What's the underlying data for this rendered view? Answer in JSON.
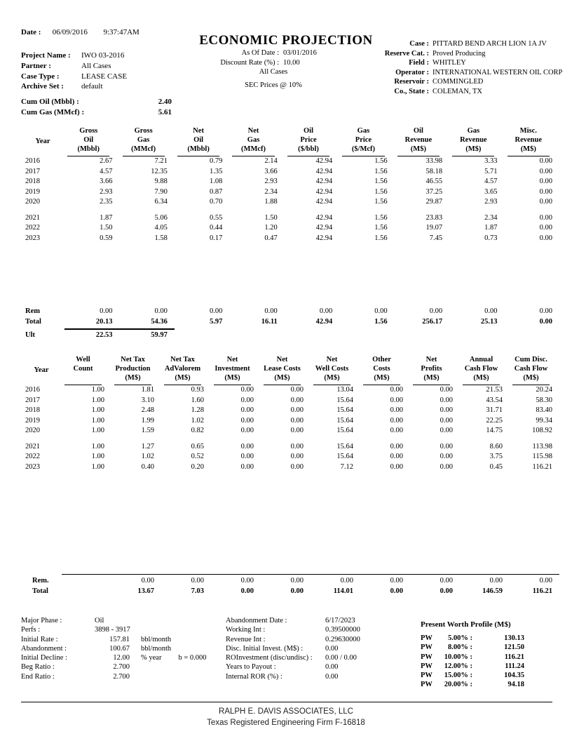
{
  "meta": {
    "date_label": "Date :",
    "date": "06/09/2016",
    "time": "9:37:47AM"
  },
  "title": "ECONOMIC PROJECTION",
  "subtitle": {
    "as_of_label": "As Of Date :",
    "as_of": "03/01/2016",
    "discount_label": "Discount Rate (%) :",
    "discount": "10.00",
    "all_cases": "All Cases",
    "sec_prices": "SEC Prices @ 10%"
  },
  "project": [
    {
      "label": "Project Name :",
      "value": "IWO 03-2016"
    },
    {
      "label": "Partner :",
      "value": "All Cases"
    },
    {
      "label": "Case Type :",
      "value": "LEASE CASE"
    },
    {
      "label": "Archive Set :",
      "value": "default"
    }
  ],
  "cums": [
    {
      "label": "Cum Oil (Mbbl) :",
      "value": "2.40"
    },
    {
      "label": "Cum Gas (MMcf) :",
      "value": "5.61"
    }
  ],
  "case_info": [
    {
      "label": "Case :",
      "value": "PITTARD BEND ARCH LION 1A JV"
    },
    {
      "label": "Reserve Cat. :",
      "value": "Proved Producing"
    },
    {
      "label": "Field :",
      "value": "WHITLEY"
    },
    {
      "label": "Operator :",
      "value": "INTERNATIONAL WESTERN OIL CORP"
    },
    {
      "label": "Reservoir :",
      "value": "COMMINGLED"
    },
    {
      "label": "Co., State :",
      "value": "COLEMAN, TX"
    }
  ],
  "table1": {
    "year_header": "Year",
    "columns": [
      [
        "Gross",
        "Oil",
        "(Mbbl)"
      ],
      [
        "Gross",
        "Gas",
        "(MMcf)"
      ],
      [
        "Net",
        "Oil",
        "(Mbbl)"
      ],
      [
        "Net",
        "Gas",
        "(MMcf)"
      ],
      [
        "Oil",
        "Price",
        "($/bbl)"
      ],
      [
        "Gas",
        "Price",
        "($/Mcf)"
      ],
      [
        "Oil",
        "Revenue",
        "(M$)"
      ],
      [
        "Gas",
        "Revenue",
        "(M$)"
      ],
      [
        "Misc.",
        "Revenue",
        "(M$)"
      ]
    ],
    "rows": [
      {
        "year": "2016",
        "cells": [
          "2.67",
          "7.21",
          "0.79",
          "2.14",
          "42.94",
          "1.56",
          "33.98",
          "3.33",
          "0.00"
        ]
      },
      {
        "year": "2017",
        "cells": [
          "4.57",
          "12.35",
          "1.35",
          "3.66",
          "42.94",
          "1.56",
          "58.18",
          "5.71",
          "0.00"
        ]
      },
      {
        "year": "2018",
        "cells": [
          "3.66",
          "9.88",
          "1.08",
          "2.93",
          "42.94",
          "1.56",
          "46.55",
          "4.57",
          "0.00"
        ]
      },
      {
        "year": "2019",
        "cells": [
          "2.93",
          "7.90",
          "0.87",
          "2.34",
          "42.94",
          "1.56",
          "37.25",
          "3.65",
          "0.00"
        ]
      },
      {
        "year": "2020",
        "cells": [
          "2.35",
          "6.34",
          "0.70",
          "1.88",
          "42.94",
          "1.56",
          "29.87",
          "2.93",
          "0.00"
        ]
      },
      {
        "year": "2021",
        "cells": [
          "1.87",
          "5.06",
          "0.55",
          "1.50",
          "42.94",
          "1.56",
          "23.83",
          "2.34",
          "0.00"
        ]
      },
      {
        "year": "2022",
        "cells": [
          "1.50",
          "4.05",
          "0.44",
          "1.20",
          "42.94",
          "1.56",
          "19.07",
          "1.87",
          "0.00"
        ]
      },
      {
        "year": "2023",
        "cells": [
          "0.59",
          "1.58",
          "0.17",
          "0.47",
          "42.94",
          "1.56",
          "7.45",
          "0.73",
          "0.00"
        ]
      }
    ],
    "summary": [
      {
        "year": "Rem",
        "bold": false,
        "cells": [
          "0.00",
          "0.00",
          "0.00",
          "0.00",
          "0.00",
          "0.00",
          "0.00",
          "0.00",
          "0.00"
        ]
      },
      {
        "year": "Total",
        "bold": true,
        "cells": [
          "20.13",
          "54.36",
          "5.97",
          "16.11",
          "42.94",
          "1.56",
          "256.17",
          "25.13",
          "0.00"
        ]
      },
      {
        "year": "Ult",
        "bold": true,
        "cells": [
          "22.53",
          "59.97",
          "",
          "",
          "",
          "",
          "",
          "",
          ""
        ]
      }
    ]
  },
  "table2": {
    "year_header": "Year",
    "columns": [
      [
        "Well",
        "Count",
        ""
      ],
      [
        "Net Tax",
        "Production",
        "(M$)"
      ],
      [
        "Net Tax",
        "AdValorem",
        "(M$)"
      ],
      [
        "Net",
        "Investment",
        "(M$)"
      ],
      [
        "Net",
        "Lease Costs",
        "(M$)"
      ],
      [
        "Net",
        "Well Costs",
        "(M$)"
      ],
      [
        "Other",
        "Costs",
        "(M$)"
      ],
      [
        "Net",
        "Profits",
        "(M$)"
      ],
      [
        "Annual",
        "Cash Flow",
        "(M$)"
      ],
      [
        "Cum Disc.",
        "Cash Flow",
        "(M$)"
      ]
    ],
    "rows": [
      {
        "year": "2016",
        "cells": [
          "1.00",
          "1.81",
          "0.93",
          "0.00",
          "0.00",
          "13.04",
          "0.00",
          "0.00",
          "21.53",
          "20.24"
        ]
      },
      {
        "year": "2017",
        "cells": [
          "1.00",
          "3.10",
          "1.60",
          "0.00",
          "0.00",
          "15.64",
          "0.00",
          "0.00",
          "43.54",
          "58.30"
        ]
      },
      {
        "year": "2018",
        "cells": [
          "1.00",
          "2.48",
          "1.28",
          "0.00",
          "0.00",
          "15.64",
          "0.00",
          "0.00",
          "31.71",
          "83.40"
        ]
      },
      {
        "year": "2019",
        "cells": [
          "1.00",
          "1.99",
          "1.02",
          "0.00",
          "0.00",
          "15.64",
          "0.00",
          "0.00",
          "22.25",
          "99.34"
        ]
      },
      {
        "year": "2020",
        "cells": [
          "1.00",
          "1.59",
          "0.82",
          "0.00",
          "0.00",
          "15.64",
          "0.00",
          "0.00",
          "14.75",
          "108.92"
        ]
      },
      {
        "year": "2021",
        "cells": [
          "1.00",
          "1.27",
          "0.65",
          "0.00",
          "0.00",
          "15.64",
          "0.00",
          "0.00",
          "8.60",
          "113.98"
        ]
      },
      {
        "year": "2022",
        "cells": [
          "1.00",
          "1.02",
          "0.52",
          "0.00",
          "0.00",
          "15.64",
          "0.00",
          "0.00",
          "3.75",
          "115.98"
        ]
      },
      {
        "year": "2023",
        "cells": [
          "1.00",
          "0.40",
          "0.20",
          "0.00",
          "0.00",
          "7.12",
          "0.00",
          "0.00",
          "0.45",
          "116.21"
        ]
      }
    ],
    "summary": [
      {
        "year": "Rem.",
        "bold": false,
        "cells": [
          "",
          "0.00",
          "0.00",
          "0.00",
          "0.00",
          "0.00",
          "0.00",
          "0.00",
          "0.00",
          "0.00"
        ]
      },
      {
        "year": "Total",
        "bold": true,
        "cells": [
          "",
          "13.67",
          "7.03",
          "0.00",
          "0.00",
          "114.01",
          "0.00",
          "0.00",
          "146.59",
          "116.21"
        ]
      }
    ]
  },
  "stats_left": [
    {
      "label": "Major Phase :",
      "text": "Oil"
    },
    {
      "label": "Perfs :",
      "text": "3898 - 3917"
    },
    {
      "label": "Initial Rate :",
      "num": "157.81",
      "unit": "bbl/month"
    },
    {
      "label": "Abandonment :",
      "num": "100.67",
      "unit": "bbl/month"
    },
    {
      "label": "Initial Decline :",
      "num": "12.00",
      "unit": "% year",
      "extra": "b = 0.000"
    },
    {
      "label": "Beg Ratio :",
      "num": "2.700"
    },
    {
      "label": "End Ratio :",
      "num": "2.700"
    }
  ],
  "stats_mid": [
    {
      "label": "Abandonment Date :",
      "value": "6/17/2023"
    },
    {
      "label": "Working Int :",
      "value": "0.39500000"
    },
    {
      "label": "Revenue Int :",
      "value": "0.29630000"
    },
    {
      "label": "Disc. Initial Invest. (M$) :",
      "value": "0.00"
    },
    {
      "label": "ROInvestment (disc/undisc) :",
      "value": "0.00  / 0.00"
    },
    {
      "label": "Years to Payout :",
      "value": "0.00"
    },
    {
      "label": "Internal ROR (%) :",
      "value": "0.00"
    }
  ],
  "pw_profile": {
    "title": "Present Worth Profile (M$)",
    "rows": [
      {
        "pw": "PW",
        "rate": "5.00% :",
        "value": "130.13"
      },
      {
        "pw": "PW",
        "rate": "8.00% :",
        "value": "121.50"
      },
      {
        "pw": "PW",
        "rate": "10.00% :",
        "value": "116.21"
      },
      {
        "pw": "PW",
        "rate": "12.00% :",
        "value": "111.24"
      },
      {
        "pw": "PW",
        "rate": "15.00% :",
        "value": "104.35"
      },
      {
        "pw": "PW",
        "rate": "20.00% :",
        "value": "94.18"
      }
    ]
  },
  "footer": {
    "line1": "RALPH E. DAVIS ASSOCIATES, LLC",
    "line2": "Texas Registered Engineering Firm F-16818"
  }
}
